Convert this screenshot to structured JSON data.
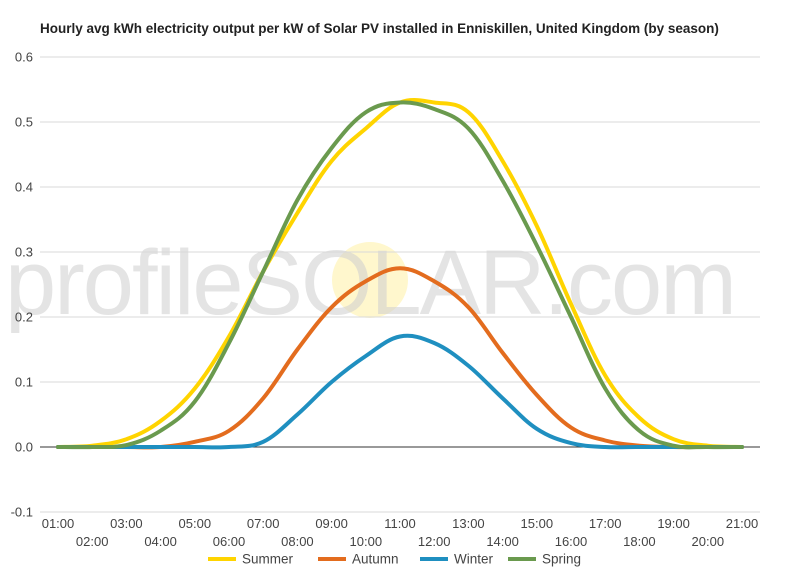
{
  "chart_data": {
    "type": "line",
    "title": "Hourly avg kWh electricity output per kW of Solar PV installed in Enniskillen, United Kingdom (by season)",
    "xlabel": "",
    "ylabel": "",
    "ylim": [
      -0.1,
      0.6
    ],
    "yticks": [
      "-0.1",
      "0.0",
      "0.1",
      "0.2",
      "0.3",
      "0.4",
      "0.5",
      "0.6"
    ],
    "grid": true,
    "legend_position": "bottom",
    "watermark": "profileSOLAR.com",
    "categories": [
      "01:00",
      "02:00",
      "03:00",
      "04:00",
      "05:00",
      "06:00",
      "07:00",
      "08:00",
      "09:00",
      "10:00",
      "11:00",
      "12:00",
      "13:00",
      "14:00",
      "15:00",
      "16:00",
      "17:00",
      "18:00",
      "19:00",
      "20:00",
      "21:00"
    ],
    "series": [
      {
        "name": "Summer",
        "color": "#FFD400",
        "values": [
          0,
          0.002,
          0.012,
          0.04,
          0.09,
          0.17,
          0.27,
          0.36,
          0.44,
          0.49,
          0.53,
          0.53,
          0.515,
          0.44,
          0.34,
          0.22,
          0.11,
          0.045,
          0.012,
          0.002,
          0
        ]
      },
      {
        "name": "Autumn",
        "color": "#E36C1E",
        "values": [
          0,
          0,
          0,
          0,
          0.008,
          0.025,
          0.075,
          0.15,
          0.215,
          0.255,
          0.275,
          0.255,
          0.215,
          0.145,
          0.08,
          0.03,
          0.01,
          0.002,
          0,
          0,
          0
        ]
      },
      {
        "name": "Winter",
        "color": "#1F8FC0",
        "values": [
          0,
          0,
          0,
          0,
          0,
          0,
          0.008,
          0.05,
          0.1,
          0.14,
          0.17,
          0.16,
          0.125,
          0.075,
          0.028,
          0.006,
          0,
          0,
          0,
          0,
          0
        ]
      },
      {
        "name": "Spring",
        "color": "#6A9A4E",
        "values": [
          0,
          0,
          0.003,
          0.025,
          0.07,
          0.16,
          0.27,
          0.38,
          0.46,
          0.515,
          0.53,
          0.52,
          0.49,
          0.41,
          0.31,
          0.2,
          0.09,
          0.025,
          0.002,
          0,
          0
        ]
      }
    ]
  }
}
